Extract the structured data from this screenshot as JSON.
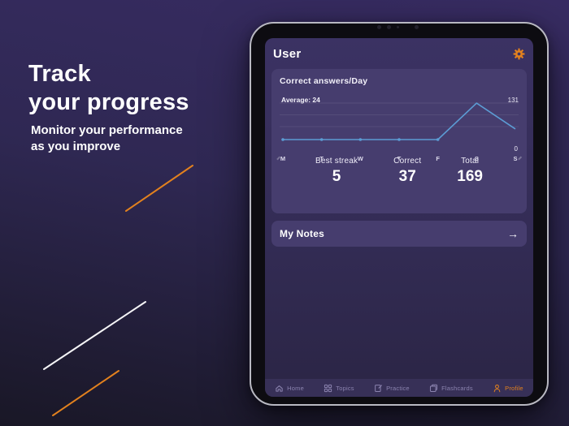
{
  "hero": {
    "headline_line1": "Track",
    "headline_line2": "your progress",
    "subtitle_line1": "Monitor your performance",
    "subtitle_line2": "as you improve"
  },
  "app": {
    "header": {
      "title": "User"
    },
    "chart_card": {
      "title": "Correct answers/Day",
      "average_label": "Average: 24",
      "y_max_label": "131",
      "y_min_label": "0",
      "stats": [
        {
          "label": "Best streak",
          "value": "5"
        },
        {
          "label": "Correct",
          "value": "37"
        },
        {
          "label": "Total",
          "value": "169"
        }
      ]
    },
    "notes_card": {
      "title": "My Notes",
      "arrow": "→"
    },
    "tab_bar": {
      "tabs": [
        {
          "label": "Home",
          "icon": "home-icon",
          "active": false
        },
        {
          "label": "Topics",
          "icon": "topics-icon",
          "active": false
        },
        {
          "label": "Practice",
          "icon": "practice-icon",
          "active": false
        },
        {
          "label": "Flashcards",
          "icon": "flashcards-icon",
          "active": false
        },
        {
          "label": "Profile",
          "icon": "profile-icon",
          "active": true
        }
      ]
    }
  },
  "chart_data": {
    "type": "line",
    "title": "Correct answers/Day",
    "categories": [
      "M",
      "T",
      "W",
      "T",
      "F",
      "S",
      "S"
    ],
    "values": [
      0,
      0,
      0,
      0,
      0,
      131,
      38
    ],
    "average": 24,
    "average_label": "Average: 24",
    "ylim": [
      0,
      140
    ],
    "y_axis_labels_right": [
      "131",
      "0"
    ],
    "grid": true,
    "legend": "none",
    "line_color": "#5C9CD4",
    "marker_points": [
      0,
      1,
      2,
      3,
      4
    ]
  },
  "colors": {
    "page_bg_top": "#382C63",
    "page_bg_bottom": "#191726",
    "screen_bg_top": "#3B3263",
    "screen_bg_bottom": "#2B2545",
    "card_bg": "#463D6E",
    "tab_bar_bg": "#373057",
    "accent_orange": "#E2811E",
    "chart_line": "#5C9CD4",
    "text_primary": "#FFFFFF",
    "text_muted": "#8B83AF",
    "bezel": "#0D0C11",
    "frame_rim": "#B9B9C2",
    "decor_white": "#F5F5F7"
  }
}
